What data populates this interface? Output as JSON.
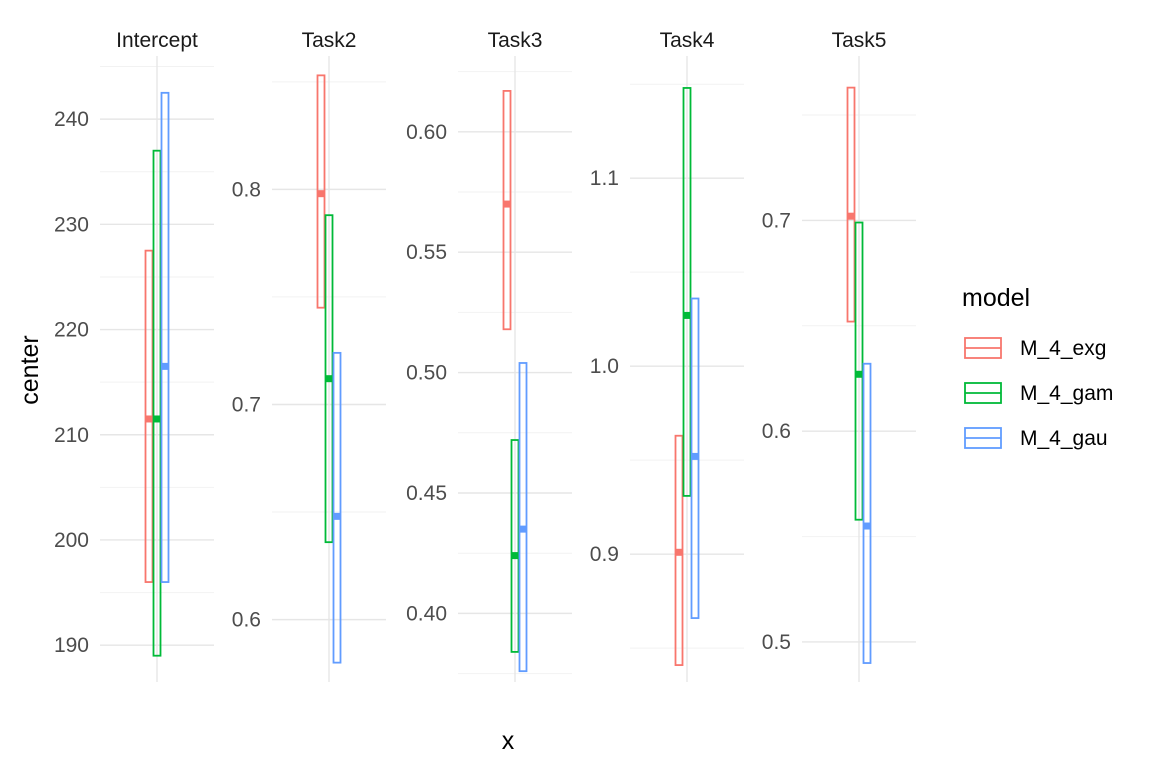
{
  "chart_data": {
    "type": "errorbar",
    "xlabel": "x",
    "ylabel": "center",
    "legend": {
      "title": "model",
      "position": "right",
      "entries": [
        {
          "name": "M_4_exg",
          "color": "#F8766D"
        },
        {
          "name": "M_4_gam",
          "color": "#00BA38"
        },
        {
          "name": "M_4_gau",
          "color": "#619CFF"
        }
      ]
    },
    "facets": [
      {
        "title": "Intercept",
        "ylim": [
          186.5,
          246
        ],
        "yticks": [
          190,
          200,
          210,
          220,
          230,
          240
        ],
        "tick_labels": [
          "190",
          "200",
          "210",
          "220",
          "230",
          "240"
        ],
        "series": [
          {
            "name": "M_4_exg",
            "center": 211.5,
            "lower": 196.0,
            "upper": 227.5
          },
          {
            "name": "M_4_gam",
            "center": 211.5,
            "lower": 189.0,
            "upper": 237.0
          },
          {
            "name": "M_4_gau",
            "center": 216.5,
            "lower": 196.0,
            "upper": 242.5
          }
        ]
      },
      {
        "title": "Task2",
        "ylim": [
          0.571,
          0.862
        ],
        "yticks": [
          0.6,
          0.7,
          0.8
        ],
        "tick_labels": [
          "0.6",
          "0.7",
          "0.8"
        ],
        "series": [
          {
            "name": "M_4_exg",
            "center": 0.798,
            "lower": 0.745,
            "upper": 0.853
          },
          {
            "name": "M_4_gam",
            "center": 0.712,
            "lower": 0.636,
            "upper": 0.788
          },
          {
            "name": "M_4_gau",
            "center": 0.648,
            "lower": 0.58,
            "upper": 0.724
          }
        ]
      },
      {
        "title": "Task3",
        "ylim": [
          0.3715,
          0.6315
        ],
        "yticks": [
          0.4,
          0.45,
          0.5,
          0.55,
          0.6
        ],
        "tick_labels": [
          "0.40",
          "0.45",
          "0.50",
          "0.55",
          "0.60"
        ],
        "series": [
          {
            "name": "M_4_exg",
            "center": 0.57,
            "lower": 0.518,
            "upper": 0.617
          },
          {
            "name": "M_4_gam",
            "center": 0.424,
            "lower": 0.384,
            "upper": 0.472
          },
          {
            "name": "M_4_gau",
            "center": 0.435,
            "lower": 0.376,
            "upper": 0.504
          }
        ]
      },
      {
        "title": "Task4",
        "ylim": [
          0.832,
          1.165
        ],
        "yticks": [
          0.9,
          1.0,
          1.1
        ],
        "tick_labels": [
          "0.9",
          "1.0",
          "1.1"
        ],
        "series": [
          {
            "name": "M_4_exg",
            "center": 0.901,
            "lower": 0.841,
            "upper": 0.963
          },
          {
            "name": "M_4_gam",
            "center": 1.027,
            "lower": 0.931,
            "upper": 1.148
          },
          {
            "name": "M_4_gau",
            "center": 0.952,
            "lower": 0.866,
            "upper": 1.036
          }
        ]
      },
      {
        "title": "Task5",
        "ylim": [
          0.481,
          0.778
        ],
        "yticks": [
          0.5,
          0.6,
          0.7
        ],
        "tick_labels": [
          "0.5",
          "0.6",
          "0.7"
        ],
        "series": [
          {
            "name": "M_4_exg",
            "center": 0.702,
            "lower": 0.652,
            "upper": 0.763
          },
          {
            "name": "M_4_gam",
            "center": 0.627,
            "lower": 0.558,
            "upper": 0.699
          },
          {
            "name": "M_4_gau",
            "center": 0.555,
            "lower": 0.49,
            "upper": 0.632
          }
        ]
      }
    ]
  }
}
